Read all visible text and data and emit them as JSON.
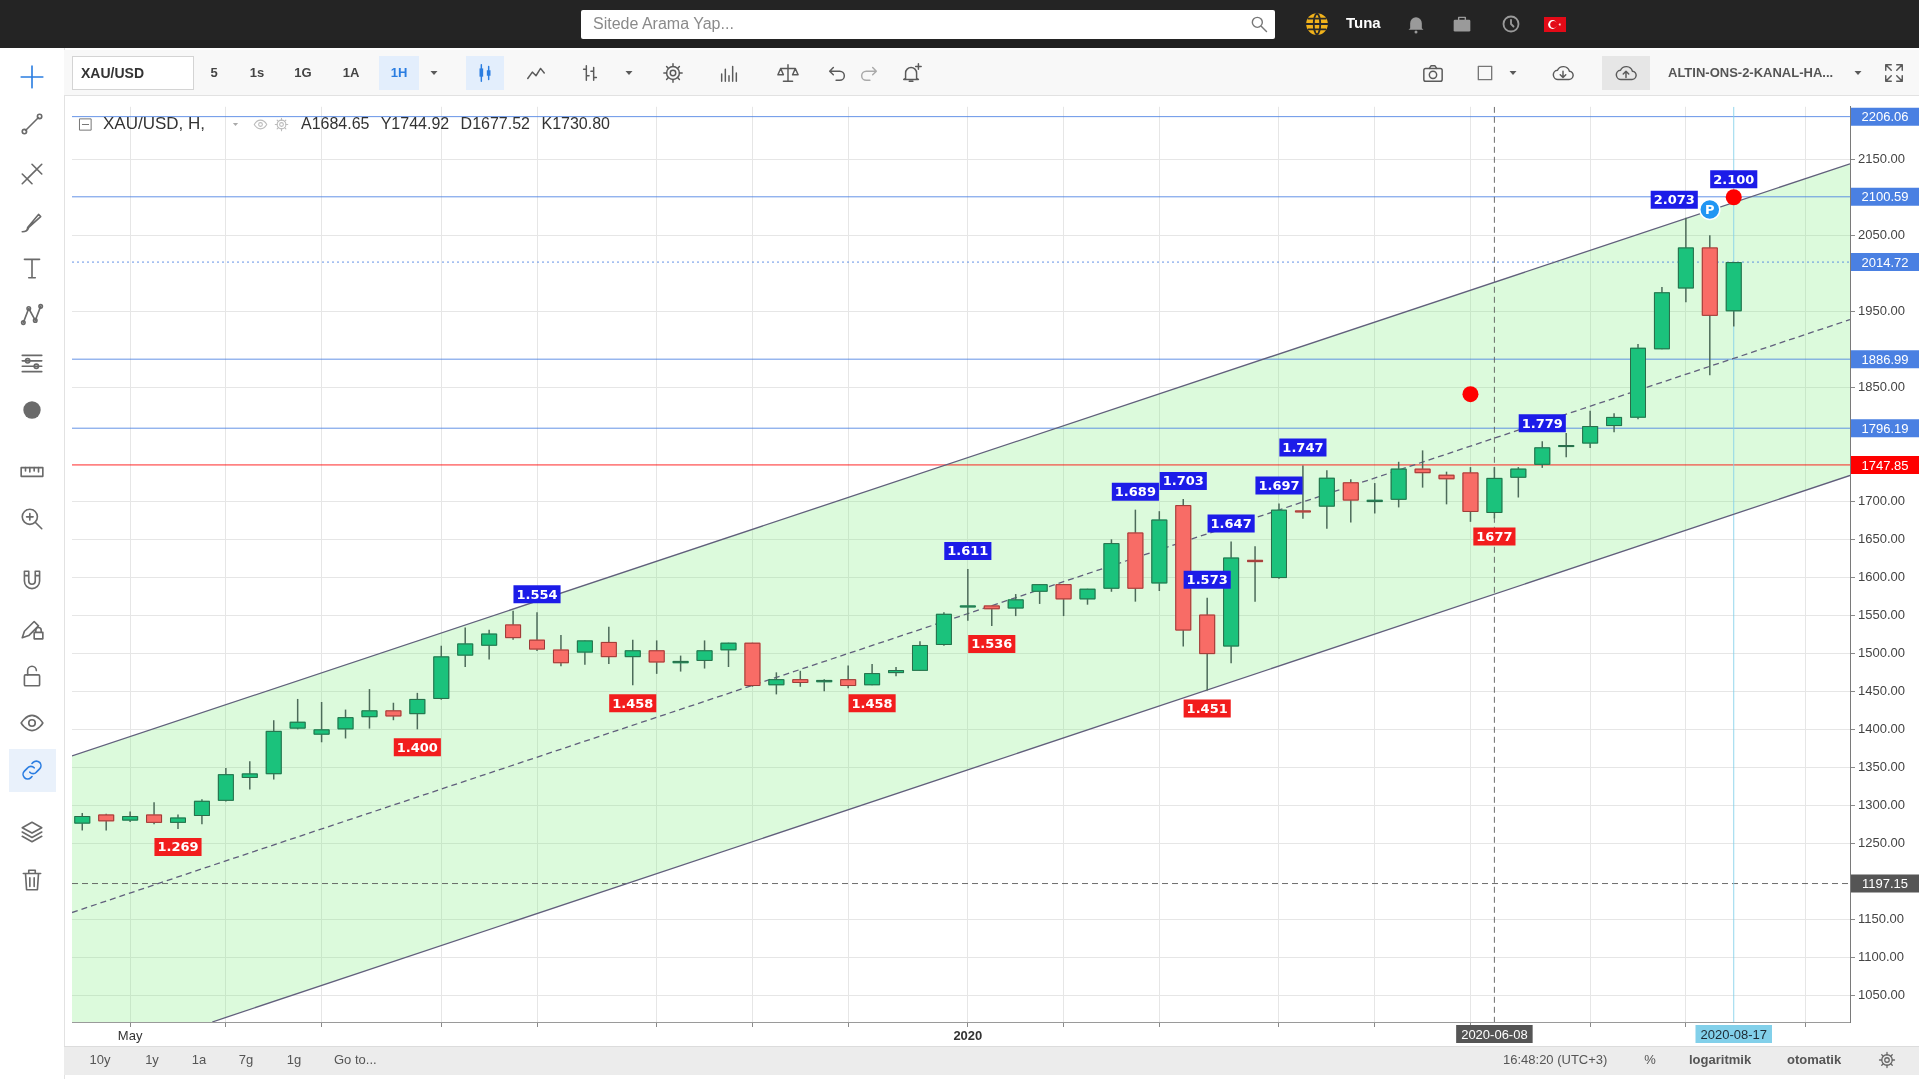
{
  "chart_data": {
    "type": "candlestick",
    "title": "XAU/USD, H,",
    "subtitle": "A1684.65 Y1744.92 D1677.52 K1730.80",
    "series": [
      {
        "type": "candlestick",
        "x": [
          "2019-04-22",
          "2019-04-29",
          "2019-05-06",
          "2019-05-13",
          "2019-05-20",
          "2019-05-27",
          "2019-06-03",
          "2019-06-10",
          "2019-06-17",
          "2019-06-24",
          "2019-07-01",
          "2019-07-08",
          "2019-07-15",
          "2019-07-22",
          "2019-07-29",
          "2019-08-05",
          "2019-08-12",
          "2019-08-19",
          "2019-08-26",
          "2019-09-02",
          "2019-09-09",
          "2019-09-16",
          "2019-09-23",
          "2019-09-30",
          "2019-10-07",
          "2019-10-14",
          "2019-10-21",
          "2019-10-28",
          "2019-11-04",
          "2019-11-11",
          "2019-11-18",
          "2019-11-25",
          "2019-12-02",
          "2019-12-09",
          "2019-12-16",
          "2019-12-23",
          "2019-12-30",
          "2020-01-06",
          "2020-01-13",
          "2020-01-20",
          "2020-01-27",
          "2020-02-03",
          "2020-02-10",
          "2020-02-17",
          "2020-02-24",
          "2020-03-02",
          "2020-03-09",
          "2020-03-16",
          "2020-03-23",
          "2020-03-30",
          "2020-04-06",
          "2020-04-13",
          "2020-04-20",
          "2020-04-27",
          "2020-05-04",
          "2020-05-11",
          "2020-05-18",
          "2020-05-25",
          "2020-06-01",
          "2020-06-08",
          "2020-06-15",
          "2020-06-22",
          "2020-06-29",
          "2020-07-06",
          "2020-07-13",
          "2020-07-20",
          "2020-07-27",
          "2020-08-03",
          "2020-08-10",
          "2020-08-17"
        ],
        "ohlc": [
          [
            1276,
            1290,
            1267,
            1286
          ],
          [
            1288,
            1289,
            1267,
            1279
          ],
          [
            1280,
            1292,
            1278,
            1286
          ],
          [
            1288,
            1304,
            1275,
            1277
          ],
          [
            1277,
            1288,
            1269,
            1284
          ],
          [
            1286,
            1308,
            1275,
            1306
          ],
          [
            1306,
            1349,
            1305,
            1341
          ],
          [
            1336,
            1358,
            1321,
            1342
          ],
          [
            1341,
            1412,
            1334,
            1398
          ],
          [
            1401,
            1440,
            1400,
            1410
          ],
          [
            1393,
            1436,
            1383,
            1400
          ],
          [
            1400,
            1426,
            1388,
            1416
          ],
          [
            1416,
            1453,
            1401,
            1425
          ],
          [
            1425,
            1435,
            1412,
            1417
          ],
          [
            1420,
            1448,
            1400,
            1440
          ],
          [
            1440,
            1510,
            1439,
            1496
          ],
          [
            1497,
            1534,
            1482,
            1513
          ],
          [
            1510,
            1531,
            1492,
            1526
          ],
          [
            1538,
            1556,
            1518,
            1520
          ],
          [
            1518,
            1554,
            1503,
            1505
          ],
          [
            1505,
            1524,
            1483,
            1487
          ],
          [
            1501,
            1517,
            1485,
            1517
          ],
          [
            1515,
            1535,
            1486,
            1495
          ],
          [
            1495,
            1518,
            1458,
            1504
          ],
          [
            1504,
            1517,
            1473,
            1488
          ],
          [
            1487,
            1497,
            1476,
            1490
          ],
          [
            1490,
            1517,
            1480,
            1504
          ],
          [
            1504,
            1514,
            1482,
            1514
          ],
          [
            1514,
            1514,
            1456,
            1457
          ],
          [
            1458,
            1475,
            1446,
            1466
          ],
          [
            1466,
            1477,
            1456,
            1461
          ],
          [
            1462,
            1466,
            1450,
            1465
          ],
          [
            1466,
            1484,
            1454,
            1457
          ],
          [
            1458,
            1486,
            1458,
            1474
          ],
          [
            1474,
            1482,
            1470,
            1478
          ],
          [
            1477,
            1516,
            1477,
            1511
          ],
          [
            1511,
            1554,
            1510,
            1552
          ],
          [
            1562,
            1611,
            1543,
            1563
          ],
          [
            1563,
            1563,
            1536,
            1558
          ],
          [
            1559,
            1578,
            1549,
            1571
          ],
          [
            1581,
            1591,
            1565,
            1591
          ],
          [
            1591,
            1591,
            1549,
            1571
          ],
          [
            1571,
            1585,
            1564,
            1585
          ],
          [
            1585,
            1650,
            1581,
            1645
          ],
          [
            1659,
            1689,
            1568,
            1585
          ],
          [
            1592,
            1687,
            1582,
            1676
          ],
          [
            1695,
            1703,
            1509,
            1530
          ],
          [
            1551,
            1573,
            1451,
            1499
          ],
          [
            1509,
            1647,
            1487,
            1626
          ],
          [
            1623,
            1641,
            1568,
            1620
          ],
          [
            1599,
            1697,
            1598,
            1689
          ],
          [
            1688,
            1747,
            1677,
            1686
          ],
          [
            1693,
            1741,
            1664,
            1731
          ],
          [
            1725,
            1729,
            1672,
            1701
          ],
          [
            1699,
            1724,
            1684,
            1702
          ],
          [
            1702,
            1752,
            1692,
            1743
          ],
          [
            1743,
            1767,
            1718,
            1737
          ],
          [
            1735,
            1739,
            1696,
            1729
          ],
          [
            1738,
            1745,
            1673,
            1686
          ],
          [
            1684.65,
            1744.92,
            1677.52,
            1730.8
          ],
          [
            1731,
            1745,
            1705,
            1743
          ],
          [
            1748,
            1779,
            1744,
            1771
          ],
          [
            1773,
            1790,
            1758,
            1774
          ],
          [
            1776,
            1819,
            1770,
            1799
          ],
          [
            1799,
            1816,
            1791,
            1811
          ],
          [
            1810,
            1907,
            1808,
            1902
          ],
          [
            1900,
            1982,
            1900,
            1975
          ],
          [
            1980,
            2073,
            1962,
            2034
          ],
          [
            2034,
            2050,
            1866,
            1944
          ],
          [
            1950,
            2015,
            1930,
            2014.72
          ]
        ]
      },
      {
        "type": "line",
        "x": [
          "2019-04-19",
          "2019-05-30",
          "2020-09-20"
        ],
        "values": [
          1159,
          1221,
          1939
        ],
        "lower": [
          1015,
          1015,
          1734
        ],
        "upper": [
          1365,
          1427,
          2144
        ],
        "color": "#615f7c",
        "line_style": "dashed"
      },
      {
        "type": "line",
        "x": [
          "2019-04-19",
          "2020-09-20"
        ],
        "values": [
          1365,
          2144
        ],
        "color": "#615f7c"
      },
      {
        "type": "line",
        "x": [
          "2019-05-30",
          "2020-09-20"
        ],
        "values": [
          1015,
          1734
        ],
        "color": "#615f7c"
      },
      {
        "type": "scatter",
        "x": [
          "2020-06-01",
          "2020-08-17"
        ],
        "values": [
          1841,
          2100
        ],
        "color": "#ff0000",
        "marker": "circle"
      }
    ],
    "xlim": [
      "2019-04-19",
      "2020-09-20"
    ],
    "xticks": [
      {
        "value": "2019-05-06",
        "label": "May"
      },
      {
        "value": "2019-06-03",
        "label": null
      },
      {
        "value": "2019-07-01",
        "label": null
      },
      {
        "value": "2019-08-05",
        "label": null
      },
      {
        "value": "2019-09-02",
        "label": null
      },
      {
        "value": "2019-10-07",
        "label": null
      },
      {
        "value": "2019-11-04",
        "label": null
      },
      {
        "value": "2019-12-02",
        "label": null
      },
      {
        "value": "2020-01-06",
        "label": "2020"
      },
      {
        "value": "2020-02-03",
        "label": null
      },
      {
        "value": "2020-03-02",
        "label": null
      },
      {
        "value": "2020-04-06",
        "label": null
      },
      {
        "value": "2020-05-04",
        "label": null
      },
      {
        "value": "2020-06-01",
        "label": null
      },
      {
        "value": "2020-07-06",
        "label": null
      },
      {
        "value": "2020-08-03",
        "label": null
      },
      {
        "value": "2020-09-07",
        "label": null
      }
    ],
    "ylim": [
      1015,
      2219
    ],
    "yticks": [
      {
        "value": 1050,
        "label": "1050.00"
      },
      {
        "value": 1100,
        "label": "1100.00"
      },
      {
        "value": 1150,
        "label": "1150.00"
      },
      {
        "value": 1250,
        "label": "1250.00"
      },
      {
        "value": 1300,
        "label": "1300.00"
      },
      {
        "value": 1350,
        "label": "1350.00"
      },
      {
        "value": 1400,
        "label": "1400.00"
      },
      {
        "value": 1450,
        "label": "1450.00"
      },
      {
        "value": 1500,
        "label": "1500.00"
      },
      {
        "value": 1550,
        "label": "1550.00"
      },
      {
        "value": 1600,
        "label": "1600.00"
      },
      {
        "value": 1650,
        "label": "1650.00"
      },
      {
        "value": 1700,
        "label": "1700.00"
      },
      {
        "value": 1850,
        "label": "1850.00"
      },
      {
        "value": 1950,
        "label": "1950.00"
      },
      {
        "value": 2050,
        "label": "2050.00"
      },
      {
        "value": 2150,
        "label": "2150.00"
      }
    ],
    "grid": true,
    "ref_lines": [
      {
        "axis": "y",
        "value": 2206.06,
        "label": "2206.06",
        "color": "#4a80e2"
      },
      {
        "axis": "y",
        "value": 2100.59,
        "label": "2100.59",
        "color": "#4a80e2"
      },
      {
        "axis": "y",
        "value": 2014.72,
        "label": "2014.72",
        "color": "#4a80e2",
        "line_style": "dotted"
      },
      {
        "axis": "y",
        "value": 1886.99,
        "label": "1886.99",
        "color": "#4a80e2"
      },
      {
        "axis": "y",
        "value": 1796.19,
        "label": "1796.19",
        "color": "#4a80e2"
      },
      {
        "axis": "y",
        "value": 1747.85,
        "label": "1747.85",
        "color": "#ff0000"
      },
      {
        "axis": "y",
        "value": 1197.15,
        "label": "1197.15",
        "color": "#555555",
        "line_style": "dashed"
      },
      {
        "axis": "x",
        "value": "2020-06-08",
        "label": "2020-06-08",
        "color": "#555555",
        "line_style": "dashed"
      },
      {
        "axis": "x",
        "value": "2020-08-17",
        "label": "2020-08-17",
        "color": "#82d0ea"
      }
    ],
    "annotations": [
      "Sitede Arama Yap...",
      "Tuna",
      "XAU/USD",
      "5",
      "1s",
      "1G",
      "1A",
      "1H",
      "ALTIN-ONS-2-KANAL-HA...",
      "10y",
      "1y",
      "1a",
      "7g",
      "1g",
      "Go to...",
      "16:48:20 (UTC+3)",
      "%",
      "logaritmik",
      "otomatik",
      {
        "text": "1.269",
        "x": "2019-05-20",
        "y": 1269
      },
      {
        "text": "1.400",
        "x": "2019-07-29",
        "y": 1400
      },
      {
        "text": "1.554",
        "x": "2019-09-02",
        "y": 1554
      },
      {
        "text": "1.458",
        "x": "2019-09-30",
        "y": 1458
      },
      {
        "text": "1.458",
        "x": "2019-12-09",
        "y": 1458
      },
      {
        "text": "1.611",
        "x": "2020-01-06",
        "y": 1611
      },
      {
        "text": "1.536",
        "x": "2020-01-13",
        "y": 1536
      },
      {
        "text": "1.689",
        "x": "2020-02-24",
        "y": 1689
      },
      {
        "text": "1.703",
        "x": "2020-03-09",
        "y": 1703
      },
      {
        "text": "1.573",
        "x": "2020-03-16",
        "y": 1573
      },
      {
        "text": "1.451",
        "x": "2020-03-16",
        "y": 1451
      },
      {
        "text": "1.647",
        "x": "2020-03-23",
        "y": 1647
      },
      {
        "text": "1.697",
        "x": "2020-04-06",
        "y": 1697
      },
      {
        "text": "1.747",
        "x": "2020-04-13",
        "y": 1747
      },
      {
        "text": "1.779",
        "x": "2020-06-22",
        "y": 1779
      },
      {
        "text": "1677",
        "x": "2020-06-08",
        "y": 1677.52
      },
      {
        "text": "2.073",
        "x": "2020-08-03",
        "y": 2073
      },
      {
        "text": "P",
        "x": "2020-08-10",
        "y": 2084
      },
      {
        "text": "2.100",
        "x": "2020-08-17",
        "y": 2100
      }
    ]
  }
}
